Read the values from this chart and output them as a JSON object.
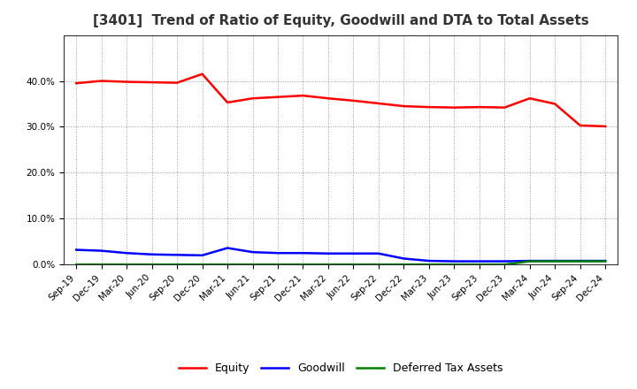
{
  "title": "[3401]  Trend of Ratio of Equity, Goodwill and DTA to Total Assets",
  "x_labels": [
    "Sep-19",
    "Dec-19",
    "Mar-20",
    "Jun-20",
    "Sep-20",
    "Dec-20",
    "Mar-21",
    "Jun-21",
    "Sep-21",
    "Dec-21",
    "Mar-22",
    "Jun-22",
    "Sep-22",
    "Dec-22",
    "Mar-23",
    "Jun-23",
    "Sep-23",
    "Dec-23",
    "Mar-24",
    "Jun-24",
    "Sep-24",
    "Dec-24"
  ],
  "equity": [
    39.5,
    40.0,
    39.8,
    39.7,
    39.6,
    41.5,
    35.3,
    36.2,
    36.5,
    36.8,
    36.2,
    35.7,
    35.1,
    34.5,
    34.3,
    34.2,
    34.3,
    34.2,
    36.2,
    35.0,
    30.3,
    30.1
  ],
  "goodwill": [
    3.2,
    3.0,
    2.5,
    2.2,
    2.1,
    2.0,
    3.6,
    2.7,
    2.5,
    2.5,
    2.4,
    2.4,
    2.4,
    1.3,
    0.8,
    0.7,
    0.7,
    0.7,
    0.8,
    0.8,
    0.8,
    0.8
  ],
  "dta": [
    0.0,
    0.0,
    0.0,
    0.0,
    0.0,
    0.0,
    0.0,
    0.0,
    0.0,
    0.0,
    0.0,
    0.0,
    0.0,
    0.0,
    0.0,
    0.0,
    0.0,
    0.0,
    0.7,
    0.7,
    0.7,
    0.7
  ],
  "equity_color": "#ff0000",
  "goodwill_color": "#0000ff",
  "dta_color": "#008000",
  "ylim": [
    0,
    50
  ],
  "yticks": [
    0,
    10,
    20,
    30,
    40
  ],
  "bg_color": "#ffffff",
  "plot_bg_color": "#ffffff",
  "grid_color": "#999999",
  "legend_labels": [
    "Equity",
    "Goodwill",
    "Deferred Tax Assets"
  ],
  "title_fontsize": 11,
  "tick_fontsize": 7.5,
  "legend_fontsize": 9
}
